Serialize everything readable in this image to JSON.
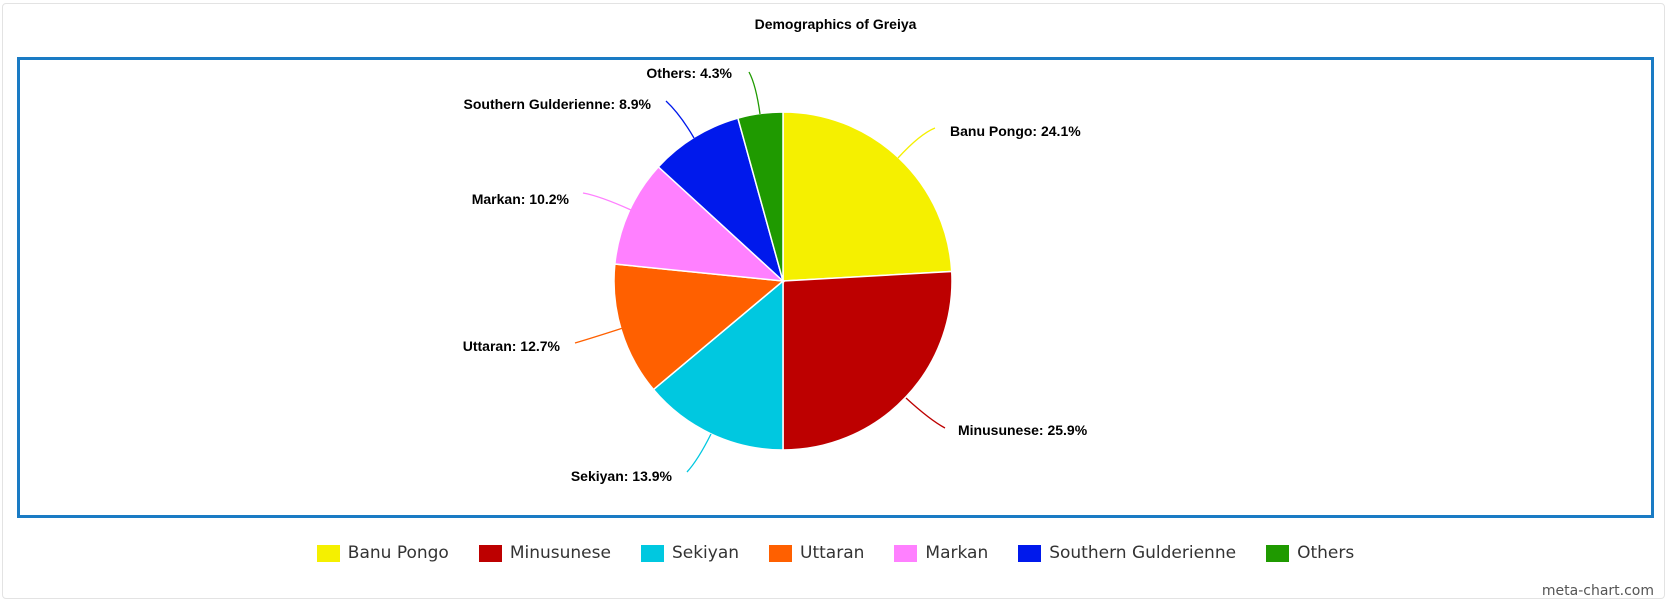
{
  "chart_data": {
    "type": "pie",
    "title": "Demographics of Greiya",
    "slices": [
      {
        "label": "Banu Pongo",
        "value": 24.1,
        "display": "Banu Pongo: 24.1%",
        "color": "#f5f000"
      },
      {
        "label": "Minusunese",
        "value": 25.9,
        "display": "Minusunese: 25.9%",
        "color": "#bd0000"
      },
      {
        "label": "Sekiyan",
        "value": 13.9,
        "display": "Sekiyan: 13.9%",
        "color": "#00c8e0"
      },
      {
        "label": "Uttaran",
        "value": 12.7,
        "display": "Uttaran: 12.7%",
        "color": "#ff6000"
      },
      {
        "label": "Markan",
        "value": 10.2,
        "display": "Markan: 10.2%",
        "color": "#ff80ff"
      },
      {
        "label": "Southern Gulderienne",
        "value": 8.9,
        "display": "Southern Gulderienne: 8.9%",
        "color": "#0019ec"
      },
      {
        "label": "Others",
        "value": 4.3,
        "display": "Others: 4.3%",
        "color": "#1f9a00"
      }
    ],
    "legend_position": "bottom"
  },
  "credit": "meta-chart.com"
}
